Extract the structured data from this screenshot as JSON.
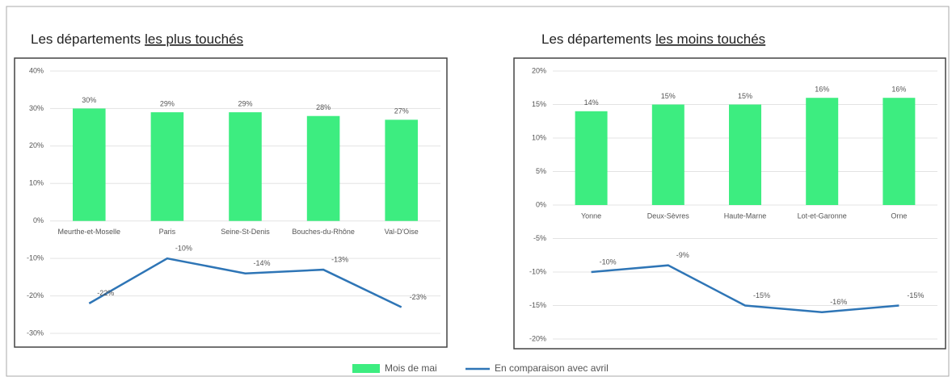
{
  "chart_data": [
    {
      "type": "bar-line",
      "title": "Les départements",
      "title_emphasis": "les plus touchés",
      "categories": [
        "Meurthe-et-Moselle",
        "Paris",
        "Seine-St-Denis",
        "Bouches-du-Rhône",
        "Val-D'Oise"
      ],
      "series": [
        {
          "values": [
            30,
            29,
            29,
            28,
            27
          ],
          "value_labels": [
            "30%",
            "29%",
            "29%",
            "28%",
            "27%"
          ]
        },
        {
          "values": [
            -22,
            -10,
            -14,
            -13,
            -23
          ],
          "value_labels": [
            "-22%",
            "-10%",
            "-14%",
            "-13%",
            "-23%"
          ]
        }
      ],
      "ylim": [
        -30,
        40
      ],
      "yticks": [
        {
          "value": 40,
          "label": "40%"
        },
        {
          "value": 30,
          "label": "30%"
        },
        {
          "value": 20,
          "label": "20%"
        },
        {
          "value": 10,
          "label": "10%"
        },
        {
          "value": 0,
          "label": "0%"
        },
        {
          "value": -10,
          "label": "-10%"
        },
        {
          "value": -20,
          "label": "-20%"
        },
        {
          "value": -30,
          "label": "-30%"
        }
      ],
      "grid": true
    },
    {
      "type": "bar-line",
      "title": "Les départements",
      "title_emphasis": "les moins touchés",
      "categories": [
        "Yonne",
        "Deux-Sèvres",
        "Haute-Marne",
        "Lot-et-Garonne",
        "Orne"
      ],
      "series": [
        {
          "values": [
            14,
            15,
            15,
            16,
            16
          ],
          "value_labels": [
            "14%",
            "15%",
            "15%",
            "16%",
            "16%"
          ]
        },
        {
          "values": [
            -10,
            -9,
            -15,
            -16,
            -15
          ],
          "value_labels": [
            "-10%",
            "-9%",
            "-15%",
            "-16%",
            "-15%"
          ]
        }
      ],
      "ylim": [
        -20,
        20
      ],
      "yticks": [
        {
          "value": 20,
          "label": "20%"
        },
        {
          "value": 15,
          "label": "15%"
        },
        {
          "value": 10,
          "label": "10%"
        },
        {
          "value": 5,
          "label": "5%"
        },
        {
          "value": 0,
          "label": "0%"
        },
        {
          "value": -5,
          "label": "-5%"
        },
        {
          "value": -10,
          "label": "-10%"
        },
        {
          "value": -15,
          "label": "-15%"
        },
        {
          "value": -20,
          "label": "-20%"
        }
      ],
      "grid": true
    }
  ],
  "legend": [
    {
      "name": "Mois de mai",
      "color": "#3ded80"
    },
    {
      "name": "En comparaison avec avril",
      "color": "#2e75b6"
    }
  ]
}
